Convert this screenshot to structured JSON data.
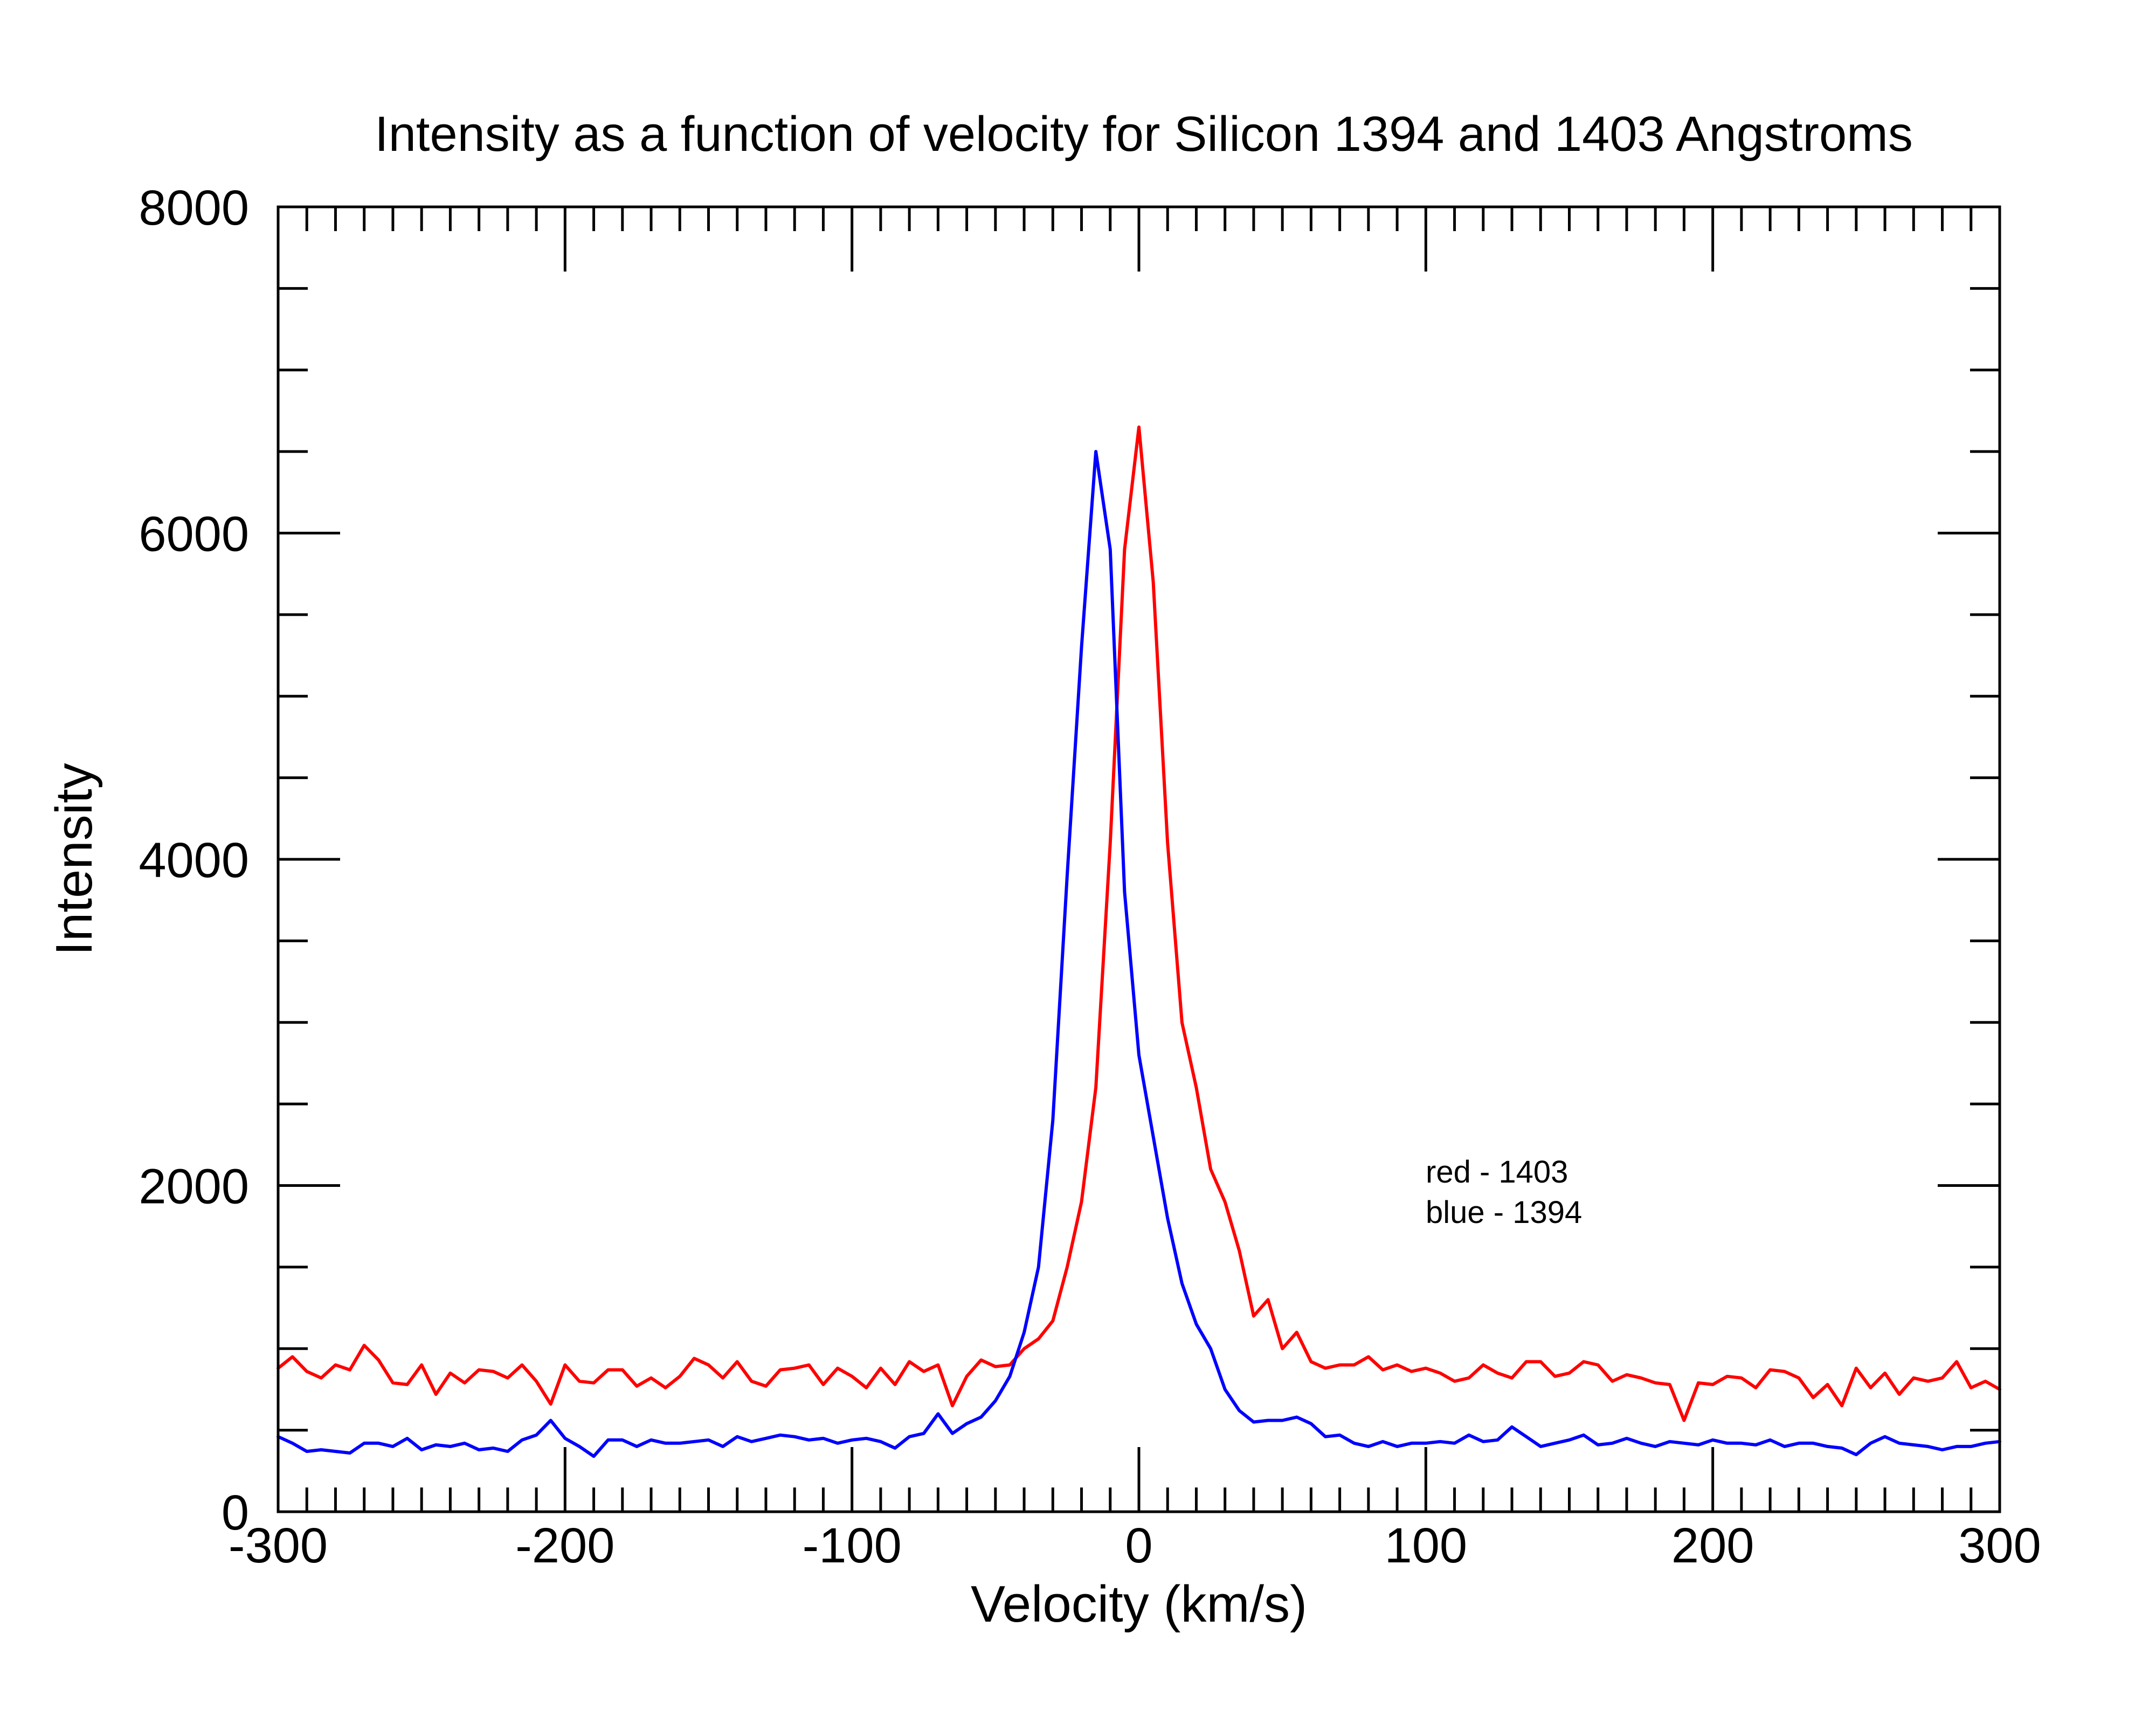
{
  "chart_data": {
    "type": "line",
    "title": "Intensity as a function of velocity for Silicon 1394 and 1403 Angstroms",
    "xlabel": "Velocity (km/s)",
    "ylabel": "Intensity",
    "xlim": [
      -300,
      300
    ],
    "ylim": [
      0,
      8000
    ],
    "x_major_ticks": [
      -300,
      -200,
      -100,
      0,
      100,
      200,
      300
    ],
    "x_minor_step": 10,
    "y_major_ticks": [
      0,
      2000,
      4000,
      6000,
      8000
    ],
    "y_minor_step": 500,
    "x_tick_labels": [
      "-300",
      "-200",
      "-100",
      "0",
      "100",
      "200",
      "300"
    ],
    "y_tick_labels": [
      "0",
      "2000",
      "4000",
      "6000",
      "8000"
    ],
    "grid": false,
    "legend_position": "right-middle",
    "annotations": [
      "red - 1403",
      "blue - 1394"
    ],
    "series": [
      {
        "color": "#ff0000",
        "x": [
          -300,
          -295,
          -290,
          -285,
          -280,
          -275,
          -270,
          -265,
          -260,
          -255,
          -250,
          -245,
          -240,
          -235,
          -230,
          -225,
          -220,
          -215,
          -210,
          -205,
          -200,
          -195,
          -190,
          -185,
          -180,
          -175,
          -170,
          -165,
          -160,
          -155,
          -150,
          -145,
          -140,
          -135,
          -130,
          -125,
          -120,
          -115,
          -110,
          -105,
          -100,
          -95,
          -90,
          -85,
          -80,
          -75,
          -70,
          -65,
          -60,
          -55,
          -50,
          -45,
          -40,
          -35,
          -30,
          -25,
          -20,
          -15,
          -10,
          -5,
          0,
          5,
          10,
          15,
          20,
          25,
          30,
          35,
          40,
          45,
          50,
          55,
          60,
          65,
          70,
          75,
          80,
          85,
          90,
          95,
          100,
          105,
          110,
          115,
          120,
          125,
          130,
          135,
          140,
          145,
          150,
          155,
          160,
          165,
          170,
          175,
          180,
          185,
          190,
          195,
          200,
          205,
          210,
          215,
          220,
          225,
          230,
          235,
          240,
          245,
          250,
          255,
          260,
          265,
          270,
          275,
          280,
          285,
          290,
          295,
          300
        ],
        "values": [
          880,
          950,
          860,
          820,
          900,
          870,
          1020,
          930,
          790,
          780,
          900,
          720,
          850,
          790,
          870,
          860,
          820,
          900,
          800,
          660,
          900,
          800,
          790,
          870,
          870,
          770,
          820,
          760,
          830,
          940,
          900,
          820,
          920,
          800,
          770,
          870,
          880,
          900,
          780,
          880,
          830,
          760,
          880,
          780,
          920,
          860,
          900,
          650,
          830,
          930,
          890,
          900,
          1000,
          1060,
          1170,
          1500,
          1900,
          2600,
          4100,
          5900,
          6650,
          5700,
          4100,
          3000,
          2600,
          2100,
          1900,
          1600,
          1200,
          1300,
          1000,
          1100,
          920,
          880,
          900,
          900,
          950,
          870,
          900,
          860,
          880,
          850,
          800,
          820,
          900,
          850,
          820,
          920,
          920,
          830,
          850,
          920,
          900,
          800,
          840,
          820,
          790,
          780,
          560,
          790,
          780,
          830,
          820,
          760,
          870,
          860,
          820,
          700,
          780,
          650,
          880,
          760,
          850,
          720,
          820,
          800,
          820,
          920,
          760,
          800,
          750
        ]
      },
      {
        "color": "#0000ff",
        "x": [
          -300,
          -295,
          -290,
          -285,
          -280,
          -275,
          -270,
          -265,
          -260,
          -255,
          -250,
          -245,
          -240,
          -235,
          -230,
          -225,
          -220,
          -215,
          -210,
          -205,
          -200,
          -195,
          -190,
          -185,
          -180,
          -175,
          -170,
          -165,
          -160,
          -155,
          -150,
          -145,
          -140,
          -135,
          -130,
          -125,
          -120,
          -115,
          -110,
          -105,
          -100,
          -95,
          -90,
          -85,
          -80,
          -75,
          -70,
          -65,
          -60,
          -55,
          -50,
          -45,
          -40,
          -35,
          -30,
          -25,
          -20,
          -15,
          -10,
          -5,
          0,
          5,
          10,
          15,
          20,
          25,
          30,
          35,
          40,
          45,
          50,
          55,
          60,
          65,
          70,
          75,
          80,
          85,
          90,
          95,
          100,
          105,
          110,
          115,
          120,
          125,
          130,
          135,
          140,
          145,
          150,
          155,
          160,
          165,
          170,
          175,
          180,
          185,
          190,
          195,
          200,
          205,
          210,
          215,
          220,
          225,
          230,
          235,
          240,
          245,
          250,
          255,
          260,
          265,
          270,
          275,
          280,
          285,
          290,
          295,
          300
        ],
        "values": [
          460,
          420,
          370,
          380,
          370,
          360,
          420,
          420,
          400,
          450,
          380,
          410,
          400,
          420,
          380,
          390,
          370,
          440,
          470,
          560,
          450,
          400,
          340,
          440,
          440,
          400,
          440,
          420,
          420,
          430,
          440,
          400,
          460,
          430,
          450,
          470,
          460,
          440,
          450,
          420,
          440,
          450,
          430,
          390,
          460,
          480,
          600,
          480,
          540,
          580,
          680,
          830,
          1100,
          1500,
          2400,
          3900,
          5300,
          6500,
          5900,
          3800,
          2800,
          2300,
          1800,
          1400,
          1150,
          1000,
          750,
          620,
          550,
          560,
          560,
          580,
          540,
          460,
          470,
          420,
          400,
          430,
          400,
          420,
          420,
          430,
          420,
          470,
          430,
          440,
          520,
          460,
          400,
          420,
          440,
          470,
          410,
          420,
          450,
          420,
          400,
          430,
          420,
          410,
          440,
          420,
          420,
          410,
          440,
          400,
          420,
          420,
          400,
          390,
          350,
          420,
          460,
          420,
          410,
          400,
          380,
          400,
          400,
          420,
          430
        ]
      }
    ]
  }
}
